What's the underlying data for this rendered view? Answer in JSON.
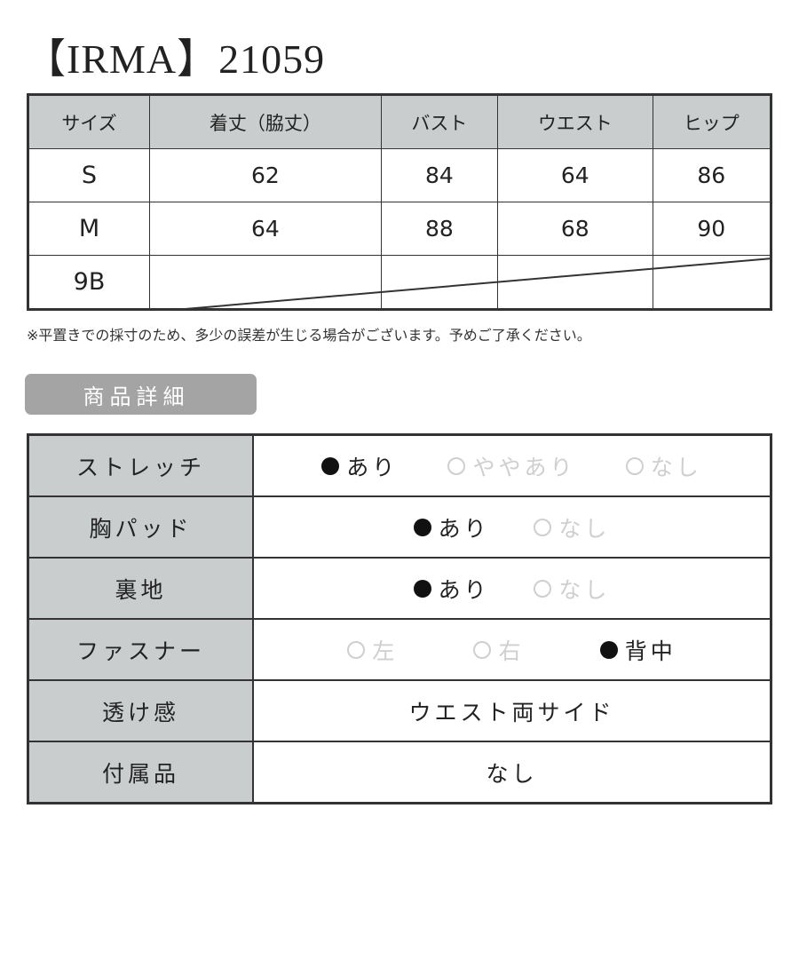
{
  "title": "【IRMA】21059",
  "size_table": {
    "headers": [
      "サイズ",
      "着丈（脇丈）",
      "バスト",
      "ウエスト",
      "ヒップ"
    ],
    "rows": [
      {
        "size": "S",
        "values": [
          "62",
          "84",
          "64",
          "86"
        ]
      },
      {
        "size": "M",
        "values": [
          "64",
          "88",
          "68",
          "90"
        ]
      },
      {
        "size": "9B",
        "values": [
          "",
          "",
          "",
          ""
        ]
      }
    ]
  },
  "note": "※平置きでの採寸のため、多少の誤差が生じる場合がございます。予めご了承ください。",
  "details_badge": "商品詳細",
  "details": [
    {
      "label": "ストレッチ",
      "options": [
        {
          "text": "あり",
          "selected": true
        },
        {
          "text": "ややあり",
          "selected": false
        },
        {
          "text": "なし",
          "selected": false
        }
      ]
    },
    {
      "label": "胸パッド",
      "options": [
        {
          "text": "あり",
          "selected": true
        },
        {
          "text": "なし",
          "selected": false
        }
      ]
    },
    {
      "label": "裏地",
      "options": [
        {
          "text": "あり",
          "selected": true
        },
        {
          "text": "なし",
          "selected": false
        }
      ]
    },
    {
      "label": "ファスナー",
      "options": [
        {
          "text": "左",
          "selected": false
        },
        {
          "text": "右",
          "selected": false
        },
        {
          "text": "背中",
          "selected": true
        }
      ]
    },
    {
      "label": "透け感",
      "value": "ウエスト両サイド"
    },
    {
      "label": "付属品",
      "value": "なし"
    }
  ],
  "colors": {
    "header_bg": "#c9cdce",
    "badge_bg": "#a4a4a4",
    "selected": "#111111",
    "unselected": "#cfcfcf"
  }
}
